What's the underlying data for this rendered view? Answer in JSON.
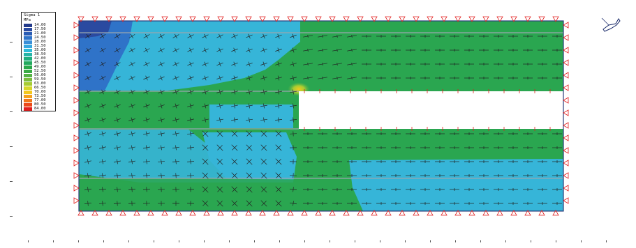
{
  "legend": {
    "title": "Sigma 1",
    "unit": "MPa",
    "entries": [
      {
        "value": "14.00",
        "color": "#233a8a"
      },
      {
        "value": "17.50",
        "color": "#2a4aa0"
      },
      {
        "value": "21.00",
        "color": "#2a5cb4"
      },
      {
        "value": "24.50",
        "color": "#2f73c8"
      },
      {
        "value": "28.00",
        "color": "#3a8fd8"
      },
      {
        "value": "31.50",
        "color": "#36a8e0"
      },
      {
        "value": "35.00",
        "color": "#2cbcd8"
      },
      {
        "value": "38.50",
        "color": "#26b4a8"
      },
      {
        "value": "42.00",
        "color": "#1fae7e"
      },
      {
        "value": "45.50",
        "color": "#22a85e"
      },
      {
        "value": "49.00",
        "color": "#2aa84a"
      },
      {
        "value": "52.50",
        "color": "#3aab45"
      },
      {
        "value": "56.00",
        "color": "#56b245"
      },
      {
        "value": "59.50",
        "color": "#7cbd3c"
      },
      {
        "value": "63.00",
        "color": "#a6cc32"
      },
      {
        "value": "66.50",
        "color": "#d6d82a"
      },
      {
        "value": "70.00",
        "color": "#f3c81e"
      },
      {
        "value": "73.50",
        "color": "#f5a01c"
      },
      {
        "value": "77.00",
        "color": "#f2761a"
      },
      {
        "value": "80.50",
        "color": "#ec4a1a"
      },
      {
        "value": "84.00",
        "color": "#e11d1d"
      }
    ]
  },
  "colors": {
    "model_green": "#2aa650",
    "model_cyan": "#36b5d8",
    "model_blue": "#2f73c8",
    "model_deep_blue": "#2a4aa0",
    "boundary_red": "#e11d1d",
    "seam_gray": "#9aa6ae",
    "void_white": "#ffffff"
  },
  "icons": {
    "compass": "north-arrow-icon"
  }
}
